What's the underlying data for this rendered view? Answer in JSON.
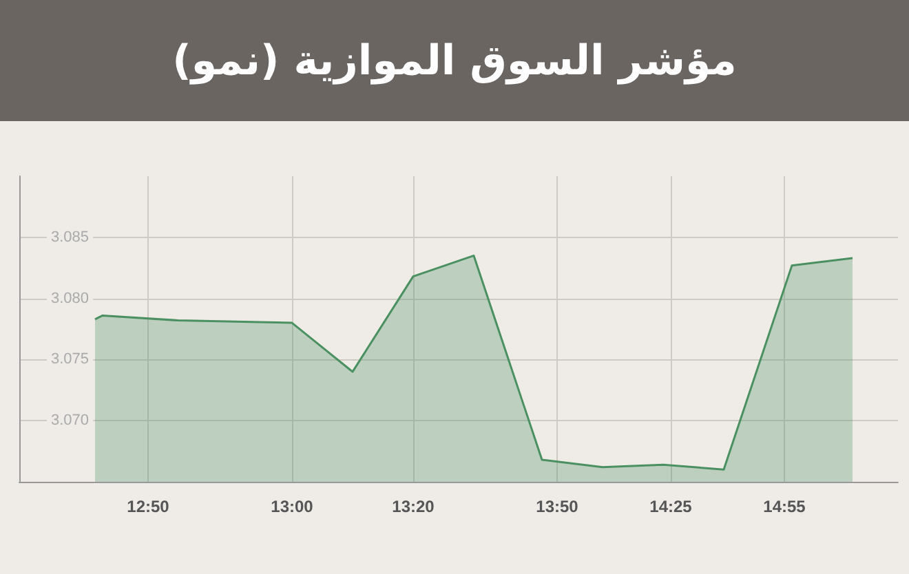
{
  "chart_data": {
    "type": "area",
    "title": "مؤشر السوق الموازية (نمو)",
    "categories": [
      null,
      null,
      null,
      null,
      null,
      null,
      null,
      null,
      null,
      null,
      null,
      null,
      null,
      null,
      null,
      null,
      null,
      "12:50",
      null,
      null,
      null,
      null,
      null,
      null,
      null,
      null,
      null,
      null,
      null,
      null,
      null,
      null,
      null,
      null,
      null,
      null,
      "13:00",
      null,
      null,
      null,
      null,
      null,
      null,
      null,
      null,
      null,
      null,
      null,
      null,
      null,
      null,
      null,
      "13:20",
      null,
      null,
      null,
      null,
      null,
      null,
      null,
      null,
      null,
      null,
      null,
      null,
      null,
      null,
      null,
      null,
      null,
      null,
      "13:50",
      null,
      null,
      null,
      null,
      null,
      null,
      null,
      null,
      null,
      null,
      null,
      null,
      null,
      null,
      "14:25",
      null,
      null,
      null,
      null,
      null,
      null,
      null,
      null,
      null,
      null,
      null,
      null,
      null,
      null,
      "14:55",
      null,
      null,
      null,
      null,
      null,
      null,
      null,
      null,
      null,
      null,
      null,
      null,
      null,
      null,
      null
    ],
    "series": [
      {
        "color": "#4a9060",
        "values": [
          null,
          null,
          null,
          null,
          null,
          null,
          null,
          null,
          null,
          null,
          3.0783,
          3.0786,
          null,
          null,
          null,
          null,
          null,
          null,
          null,
          null,
          null,
          3.0782,
          null,
          null,
          null,
          null,
          null,
          null,
          null,
          null,
          null,
          null,
          null,
          null,
          null,
          null,
          3.078,
          null,
          null,
          null,
          null,
          null,
          null,
          null,
          3.074,
          null,
          null,
          null,
          null,
          null,
          null,
          null,
          3.0818,
          null,
          null,
          null,
          null,
          null,
          null,
          null,
          3.0835,
          null,
          null,
          null,
          null,
          null,
          null,
          null,
          null,
          3.0668,
          null,
          null,
          null,
          null,
          null,
          null,
          null,
          3.0662,
          null,
          null,
          null,
          null,
          null,
          null,
          null,
          3.0664,
          null,
          null,
          null,
          null,
          null,
          null,
          null,
          3.066,
          null,
          null,
          null,
          null,
          null,
          null,
          null,
          null,
          3.0827,
          null,
          null,
          null,
          null,
          null,
          null,
          null,
          3.0833,
          null,
          null,
          null,
          null,
          null,
          null
        ]
      }
    ],
    "ylim": [
      3.065,
      3.09
    ],
    "yticks": [
      {
        "value": 3.07,
        "label": "3.070"
      },
      3.075,
      {
        "value": 3.08,
        "label": "3.080"
      },
      3.085
    ],
    "grid": true,
    "marker": "none",
    "line_style": "solid"
  }
}
